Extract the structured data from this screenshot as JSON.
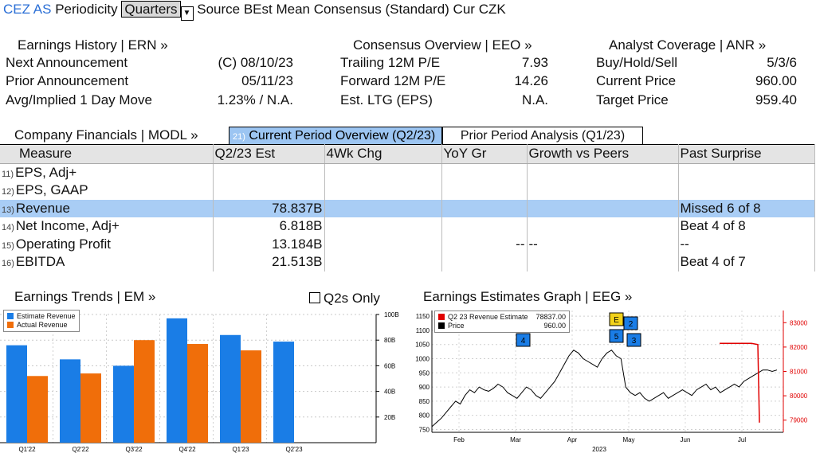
{
  "header": {
    "ticker": "CEZ AS",
    "periodicity_label": "Periodicity",
    "periodicity_value": "Quarters",
    "source_label": "Source",
    "source_value": "BEst Mean Consensus (Standard)",
    "cur_label": "Cur",
    "cur_value": "CZK"
  },
  "earnings_history": {
    "title": "Earnings History | ERN »",
    "rows": [
      {
        "label": "Next Announcement",
        "value": "(C)  08/10/23"
      },
      {
        "label": "Prior Announcement",
        "value": "05/11/23"
      },
      {
        "label": "Avg/Implied 1 Day Move",
        "value": "1.23% / N.A."
      }
    ]
  },
  "consensus_overview": {
    "title": "Consensus Overview | EEO »",
    "rows": [
      {
        "label": "Trailing 12M P/E",
        "value": "7.93"
      },
      {
        "label": "Forward 12M P/E",
        "value": "14.26"
      },
      {
        "label": "Est. LTG (EPS)",
        "value": "N.A."
      }
    ]
  },
  "analyst_coverage": {
    "title": "Analyst Coverage | ANR »",
    "rows": [
      {
        "label": "Buy/Hold/Sell",
        "value": "5/3/6"
      },
      {
        "label": "Current Price",
        "value": "960.00"
      },
      {
        "label": "Target Price",
        "value": "959.40"
      }
    ]
  },
  "financials": {
    "title": "Company Financials | MODL »",
    "tab_current_num": "21)",
    "tab_current": "Current Period Overview (Q2/23)",
    "tab_prior": "Prior Period Analysis (Q1/23)",
    "columns": [
      "Measure",
      "Q2/23 Est",
      "4Wk Chg",
      "YoY Gr",
      "Growth vs Peers",
      "Past Surprise"
    ],
    "rows": [
      {
        "num": "11)",
        "measure": "EPS, Adj+",
        "est": "",
        "chg": "",
        "yoy": "",
        "peers": "",
        "surprise": ""
      },
      {
        "num": "12)",
        "measure": "EPS, GAAP",
        "est": "",
        "chg": "",
        "yoy": "",
        "peers": "",
        "surprise": ""
      },
      {
        "num": "13)",
        "measure": "Revenue",
        "est": "78.837B",
        "chg": "",
        "yoy": "",
        "peers": "",
        "surprise": "Missed 6 of 8"
      },
      {
        "num": "14)",
        "measure": "Net Income, Adj+",
        "est": "6.818B",
        "chg": "",
        "yoy": "",
        "peers": "",
        "surprise": "Beat 4 of 8"
      },
      {
        "num": "15)",
        "measure": "Operating Profit",
        "est": "13.184B",
        "chg": "",
        "yoy": "--",
        "peers": "--",
        "surprise": "--"
      },
      {
        "num": "16)",
        "measure": "EBITDA",
        "est": "21.513B",
        "chg": "",
        "yoy": "",
        "peers": "",
        "surprise": "Beat 4 of 7"
      }
    ]
  },
  "earnings_trends": {
    "title": "Earnings Trends | EM »",
    "q2s_only_label": "Q2s Only",
    "colors": {
      "estimate": "#1a7de6",
      "actual": "#f06e0a"
    }
  },
  "earnings_estimates": {
    "title": "Earnings Estimates Graph | EEG »",
    "legend": [
      {
        "label": "Q2 23 Revenue Estimate",
        "value": "78837.00",
        "color": "#e00000"
      },
      {
        "label": "Price",
        "value": "960.00",
        "color": "#000000"
      }
    ],
    "markers": [
      {
        "label": "4",
        "fill": "#1a7de6"
      },
      {
        "label": "E",
        "fill": "#f2d21a"
      },
      {
        "label": "2",
        "fill": "#1a7de6"
      },
      {
        "label": "5",
        "fill": "#1a7de6"
      },
      {
        "label": "3",
        "fill": "#1a7de6"
      }
    ],
    "year_label": "2023"
  },
  "chart_data": [
    {
      "type": "bar",
      "categories": [
        "Q1'22",
        "Q2'22",
        "Q3'22",
        "Q4'22",
        "Q1'23",
        "Q2'23"
      ],
      "series": [
        {
          "name": "Estimate Revenue",
          "values": [
            76,
            65,
            60,
            97,
            84,
            78.837
          ]
        },
        {
          "name": "Actual Revenue",
          "values": [
            52,
            54,
            80,
            77,
            72,
            null
          ]
        }
      ],
      "y_ticks": [
        "20B",
        "40B",
        "60B",
        "80B",
        "100B"
      ],
      "ylim": [
        0,
        100
      ],
      "legend_position": "top-left"
    },
    {
      "type": "line",
      "x_ticks": [
        "Feb",
        "Mar",
        "Apr",
        "May",
        "Jun",
        "Jul"
      ],
      "left_ticks": [
        "750",
        "800",
        "850",
        "900",
        "950",
        "1000",
        "1050",
        "1100",
        "1150"
      ],
      "right_ticks": [
        "79000",
        "80000",
        "81000",
        "82000",
        "83000"
      ],
      "left_ylim": [
        740,
        1170
      ],
      "right_ylim": [
        78500,
        83500
      ],
      "series": [
        {
          "name": "Price",
          "axis": "left",
          "values": [
            760,
            775,
            790,
            810,
            830,
            850,
            840,
            870,
            890,
            880,
            900,
            890,
            885,
            895,
            910,
            900,
            880,
            870,
            860,
            880,
            900,
            890,
            870,
            860,
            880,
            900,
            920,
            950,
            980,
            1010,
            1030,
            1020,
            1000,
            990,
            980,
            970,
            1000,
            1020,
            1030,
            1010,
            1000,
            900,
            880,
            870,
            880,
            860,
            850,
            860,
            870,
            880,
            860,
            870,
            880,
            890,
            880,
            870,
            890,
            900,
            910,
            890,
            900,
            880,
            890,
            900,
            910,
            900,
            920,
            930,
            940,
            950,
            960,
            960,
            955,
            960
          ]
        },
        {
          "name": "Q2 23 Revenue Estimate",
          "axis": "right",
          "values": [
            82150,
            82150,
            82150,
            82150,
            82100,
            78900
          ]
        }
      ]
    }
  ]
}
